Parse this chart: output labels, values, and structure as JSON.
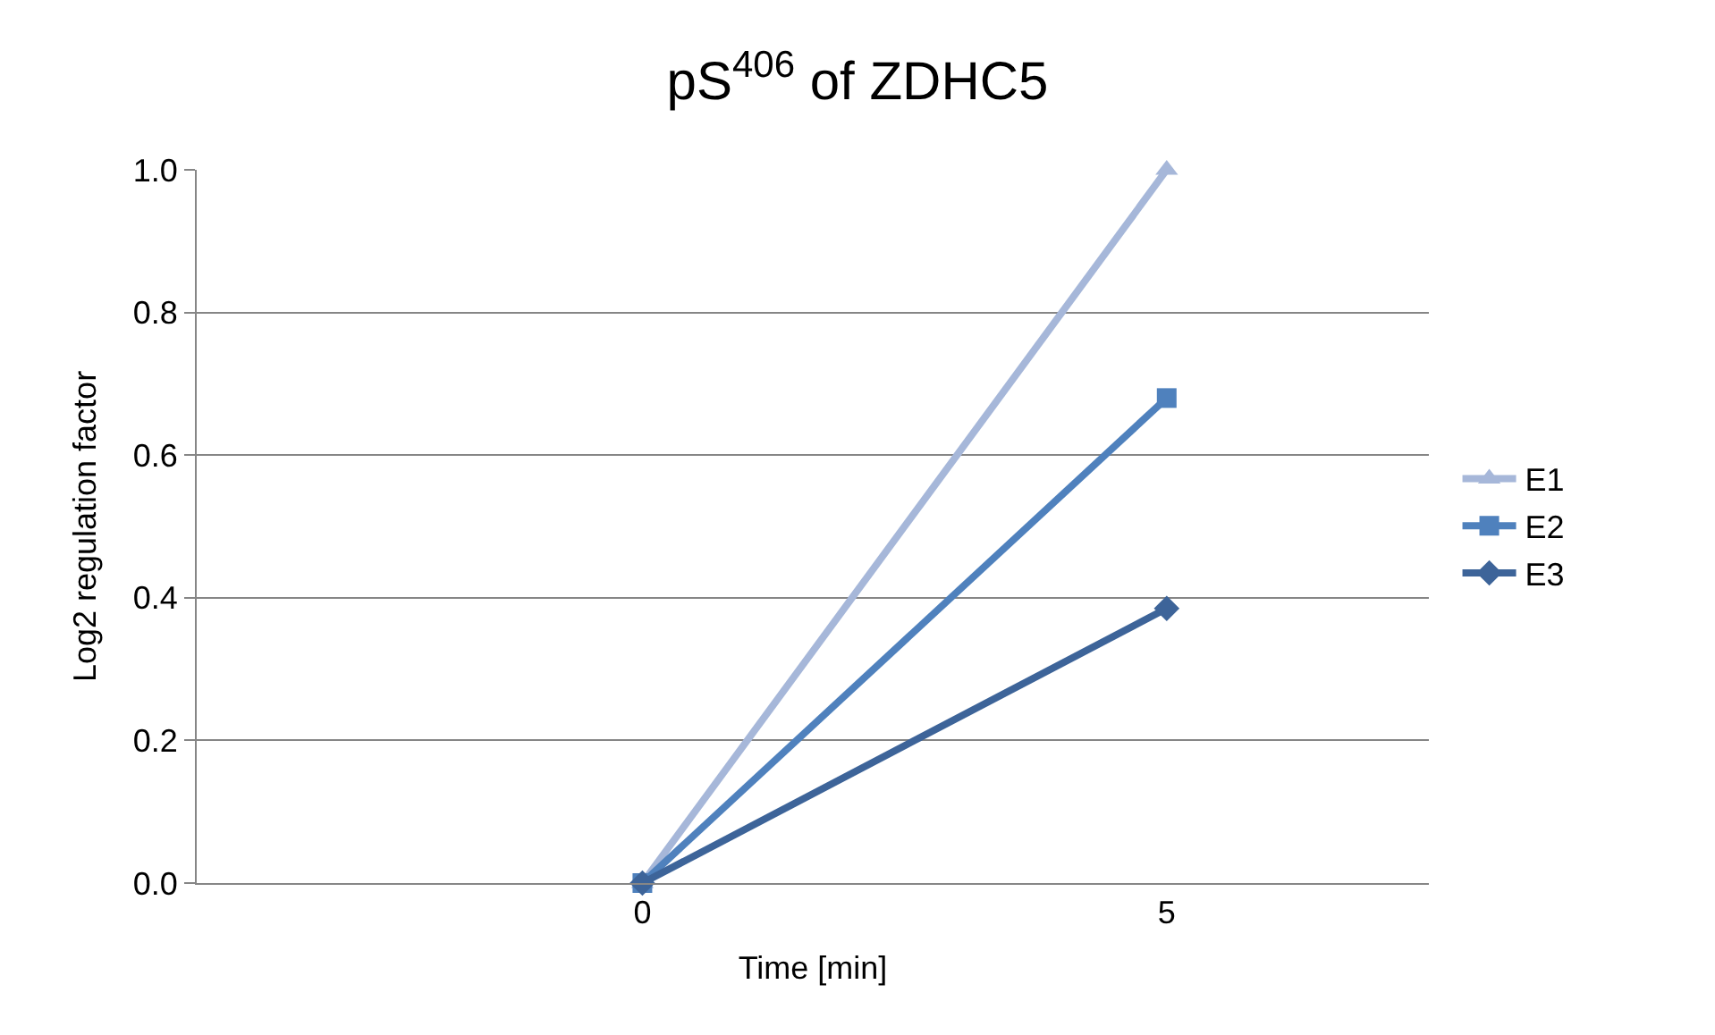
{
  "chart_data": {
    "type": "line",
    "title": "pS$^{406}$ of ZDHC5",
    "xlabel": "Time [min]",
    "ylabel": "Log2 regulation factor",
    "categories": [
      "0",
      "5"
    ],
    "series": [
      {
        "name": "E1",
        "color": "#a6b7d9",
        "marker": "triangle",
        "values": [
          0,
          1.0
        ]
      },
      {
        "name": "E2",
        "color": "#4f81bd",
        "marker": "square",
        "values": [
          0,
          0.68
        ]
      },
      {
        "name": "E3",
        "color": "#3d6499",
        "marker": "diamond",
        "values": [
          0,
          0.385
        ]
      }
    ],
    "ylim": [
      0,
      1.0
    ],
    "yticks": [
      {
        "value": 0,
        "label": "0.0"
      },
      {
        "value": 0.2,
        "label": "0.2"
      },
      {
        "value": 0.4,
        "label": "0.4"
      },
      {
        "value": 0.6,
        "label": "0.6"
      },
      {
        "value": 0.8,
        "label": "0.8"
      },
      {
        "value": 1.0,
        "label": "1.0"
      }
    ],
    "grid": "y",
    "legend": "right",
    "line_style": "solid"
  }
}
